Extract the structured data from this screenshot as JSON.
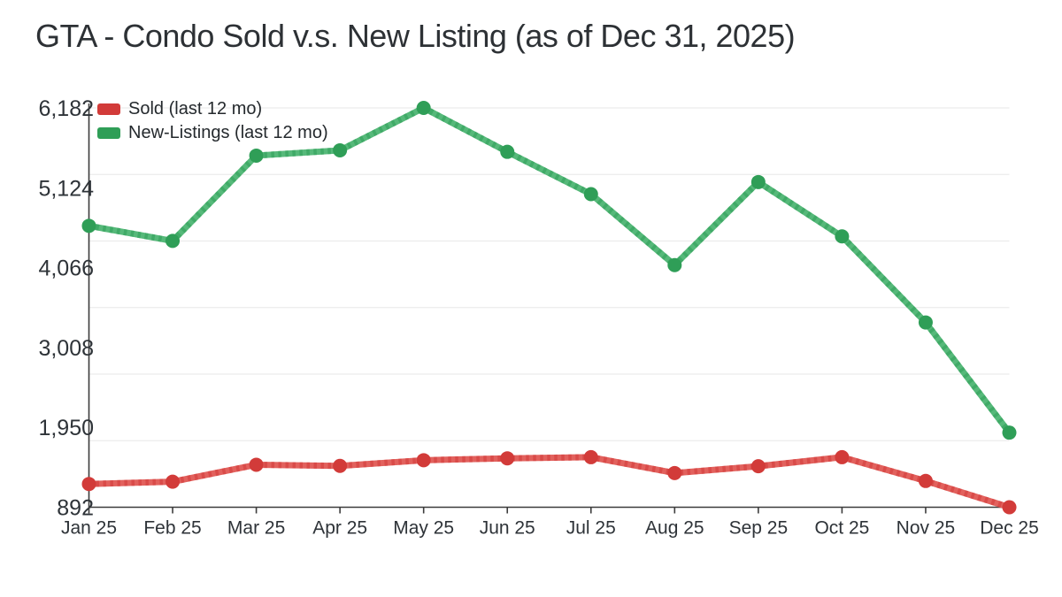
{
  "title": "GTA - Condo Sold v.s. New Listing (as of Dec 31, 2025)",
  "legend": {
    "items": [
      {
        "label": "Sold (last 12 mo)",
        "color": "#d23b39"
      },
      {
        "label": "New-Listings (last 12 mo)",
        "color": "#2f9e57"
      }
    ]
  },
  "chart_data": {
    "type": "line",
    "title": "GTA - Condo Sold v.s. New Listing (as of Dec 31, 2025)",
    "categories": [
      "Jan 25",
      "Feb 25",
      "Mar 25",
      "Apr 25",
      "May 25",
      "Jun 25",
      "Jul 25",
      "Aug 25",
      "Sep 25",
      "Oct 25",
      "Nov 25",
      "Dec 25"
    ],
    "series": [
      {
        "name": "Sold (last 12 mo)",
        "color": "#d23b39",
        "line_color": "#e2615d",
        "values": [
          1200,
          1230,
          1455,
          1440,
          1515,
          1540,
          1555,
          1345,
          1435,
          1555,
          1240,
          892
        ]
      },
      {
        "name": "New-Listings (last 12 mo)",
        "color": "#2f9e57",
        "line_color": "#56b97a",
        "values": [
          4620,
          4420,
          5550,
          5620,
          6182,
          5600,
          5040,
          4100,
          5200,
          4480,
          3340,
          1880
        ]
      }
    ],
    "y_tick_labels": [
      "6,182",
      "5,124",
      "4,066",
      "3,008",
      "1,950",
      "892"
    ],
    "ylim": [
      892,
      6182
    ],
    "grid": {
      "horizontal_divisions": 6,
      "color": "#ececec"
    },
    "axis_color": "#3c3c3c",
    "tick_label_color": "#2e3338",
    "legend_position": "top-left-inside"
  }
}
